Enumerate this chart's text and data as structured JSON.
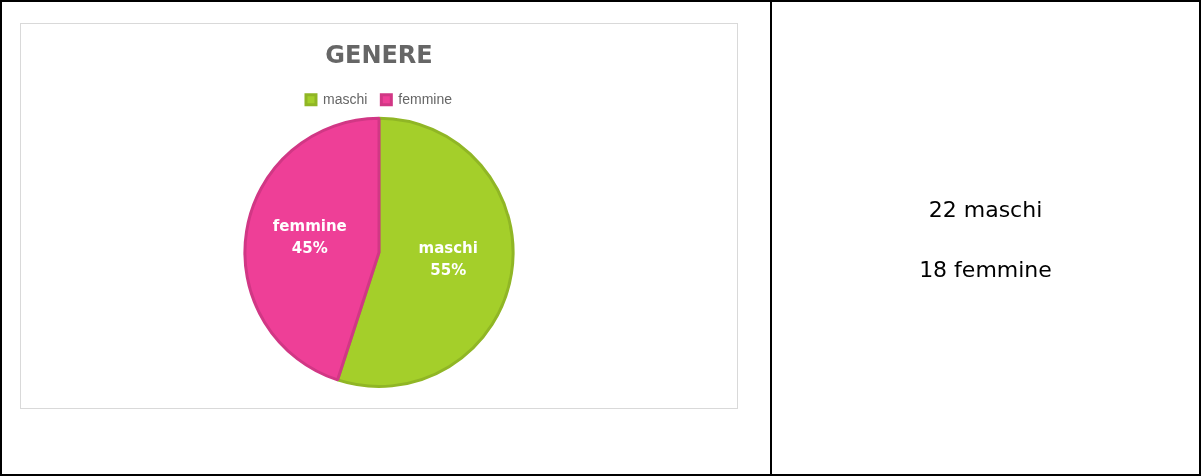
{
  "chart_data": {
    "type": "pie",
    "title": "GENERE",
    "categories": [
      "maschi",
      "femmine"
    ],
    "values": [
      55,
      45
    ],
    "colors": [
      "#a4cf2a",
      "#ee3f97"
    ],
    "value_labels": [
      "55%",
      "45%"
    ],
    "legend": "top",
    "annotations": [
      "22 maschi",
      "18 femmine"
    ]
  }
}
